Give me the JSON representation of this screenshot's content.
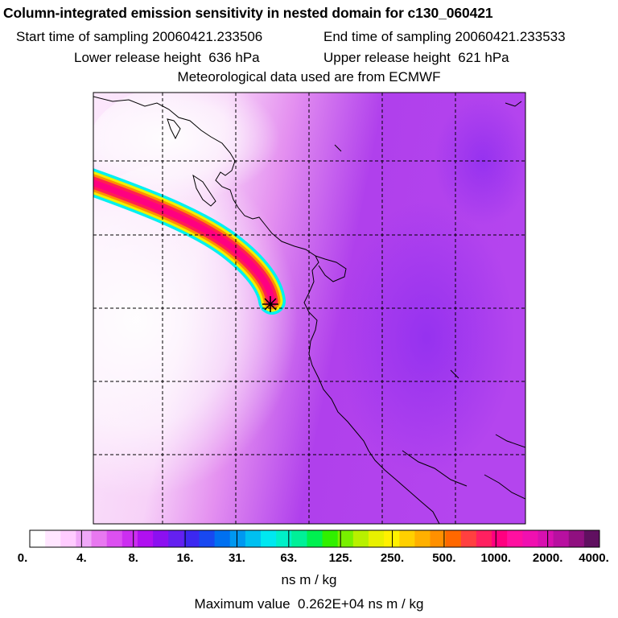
{
  "header": {
    "title": "Column-integrated emission sensitivity in nested domain for c130_060421",
    "start_label": "Start time of sampling",
    "start_value": "20060421.233506",
    "end_label": "End time of sampling",
    "end_value": "20060421.233533",
    "lower_label": "Lower release height",
    "lower_value": "636 hPa",
    "upper_label": "Upper release height",
    "upper_value": "621 hPa",
    "met_line": "Meteorological data used are from ECMWF"
  },
  "colorbar": {
    "labels": [
      "0.",
      "4.",
      "8.",
      "16.",
      "31.",
      "63.",
      "125.",
      "250.",
      "500.",
      "1000.",
      "2000.",
      "4000."
    ],
    "colors": [
      "#ffffff",
      "#ffe6ff",
      "#ffccff",
      "#f0a8f8",
      "#e878f0",
      "#dc50f0",
      "#cc2ef0",
      "#b010f0",
      "#8c10f0",
      "#6420f0",
      "#3c28f0",
      "#1848f0",
      "#0070f0",
      "#0098f0",
      "#00c0f0",
      "#00e8f0",
      "#00f0c8",
      "#00f098",
      "#00f050",
      "#30f000",
      "#78f000",
      "#b8f000",
      "#e8f000",
      "#fff000",
      "#ffd000",
      "#ffb000",
      "#ff9000",
      "#ff6800",
      "#ff4040",
      "#ff2060",
      "#ff0080",
      "#ff10a0",
      "#f010b0",
      "#d810b0",
      "#b810a0",
      "#901080",
      "#601060"
    ],
    "units": "ns m / kg"
  },
  "footer": {
    "max_label": "Maximum value",
    "max_value": "0.262E+04 ns m / kg"
  },
  "map": {
    "marker": "release-point-star",
    "plume_colors": [
      "#00f0f0",
      "#f0f000",
      "#ff9000",
      "#ff2050",
      "#ff0080"
    ]
  }
}
